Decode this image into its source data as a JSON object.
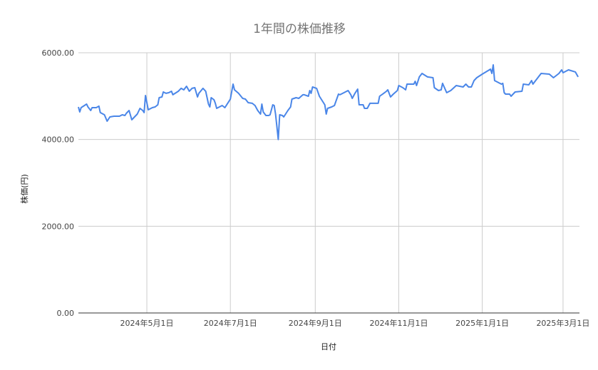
{
  "chart_data": {
    "type": "line",
    "title": "1年間の株価推移",
    "xlabel": "日付",
    "ylabel": "株価(円)",
    "xlim": [
      "2024-03-12",
      "2025-03-13"
    ],
    "ylim": [
      0,
      6000
    ],
    "grid": true,
    "legend": "none",
    "line_color": "#4a86e8",
    "x_ticks": [
      {
        "date": "2024-05-01",
        "label": "2024年5月1日"
      },
      {
        "date": "2024-07-01",
        "label": "2024年7月1日"
      },
      {
        "date": "2024-09-01",
        "label": "2024年9月1日"
      },
      {
        "date": "2024-11-01",
        "label": "2024年11月1日"
      },
      {
        "date": "2025-01-01",
        "label": "2025年1月1日"
      },
      {
        "date": "2025-03-01",
        "label": "2025年3月1日"
      }
    ],
    "y_ticks": [
      {
        "value": 0,
        "label": "0.00"
      },
      {
        "value": 2000,
        "label": "2000.00"
      },
      {
        "value": 4000,
        "label": "4000.00"
      },
      {
        "value": 6000,
        "label": "6000.00"
      }
    ],
    "series": [
      {
        "x": [
          "2024-03-12",
          "2024-03-13",
          "2024-03-14",
          "2024-03-18",
          "2024-03-19",
          "2024-03-21",
          "2024-03-22",
          "2024-03-25",
          "2024-03-27",
          "2024-03-28",
          "2024-03-31",
          "2024-04-02",
          "2024-04-04",
          "2024-04-07",
          "2024-04-10",
          "2024-04-11",
          "2024-04-13",
          "2024-04-15",
          "2024-04-16",
          "2024-04-18",
          "2024-04-20",
          "2024-04-24",
          "2024-04-26",
          "2024-04-28",
          "2024-04-29",
          "2024-04-30",
          "2024-05-02",
          "2024-05-05",
          "2024-05-07",
          "2024-05-09",
          "2024-05-10",
          "2024-05-12",
          "2024-05-13",
          "2024-05-15",
          "2024-05-17",
          "2024-05-19",
          "2024-05-20",
          "2024-05-24",
          "2024-05-26",
          "2024-05-28",
          "2024-05-30",
          "2024-06-01",
          "2024-06-03",
          "2024-06-05",
          "2024-06-07",
          "2024-06-08",
          "2024-06-11",
          "2024-06-13",
          "2024-06-15",
          "2024-06-16",
          "2024-06-17",
          "2024-06-19",
          "2024-06-20",
          "2024-06-21",
          "2024-06-23",
          "2024-06-25",
          "2024-06-27",
          "2024-06-29",
          "2024-07-01",
          "2024-07-03",
          "2024-07-04",
          "2024-07-07",
          "2024-07-10",
          "2024-07-12",
          "2024-07-14",
          "2024-07-17",
          "2024-07-19",
          "2024-07-21",
          "2024-07-23",
          "2024-07-24",
          "2024-07-25",
          "2024-07-27",
          "2024-07-29",
          "2024-07-30",
          "2024-08-01",
          "2024-08-02",
          "2024-08-03",
          "2024-08-05",
          "2024-08-06",
          "2024-08-08",
          "2024-08-09",
          "2024-08-12",
          "2024-08-14",
          "2024-08-15",
          "2024-08-18",
          "2024-08-20",
          "2024-08-23",
          "2024-08-24",
          "2024-08-27",
          "2024-08-28",
          "2024-08-29",
          "2024-08-30",
          "2024-09-02",
          "2024-09-04",
          "2024-09-06",
          "2024-09-08",
          "2024-09-09",
          "2024-09-10",
          "2024-09-13",
          "2024-09-15",
          "2024-09-18",
          "2024-09-19",
          "2024-09-22",
          "2024-09-25",
          "2024-09-27",
          "2024-09-28",
          "2024-09-30",
          "2024-10-02",
          "2024-10-03",
          "2024-10-06",
          "2024-10-07",
          "2024-10-09",
          "2024-10-11",
          "2024-10-14",
          "2024-10-17",
          "2024-10-18",
          "2024-10-21",
          "2024-10-23",
          "2024-10-24",
          "2024-10-26",
          "2024-10-28",
          "2024-10-31",
          "2024-11-01",
          "2024-11-04",
          "2024-11-06",
          "2024-11-07",
          "2024-11-12",
          "2024-11-13",
          "2024-11-14",
          "2024-11-16",
          "2024-11-18",
          "2024-11-22",
          "2024-11-26",
          "2024-11-27",
          "2024-11-30",
          "2024-12-02",
          "2024-12-03",
          "2024-12-06",
          "2024-12-09",
          "2024-12-13",
          "2024-12-18",
          "2024-12-20",
          "2024-12-22",
          "2024-12-24",
          "2024-12-26",
          "2024-12-28",
          "2025-01-01",
          "2025-01-07",
          "2025-01-08",
          "2025-01-09",
          "2025-01-10",
          "2025-01-15",
          "2025-01-16",
          "2025-01-17",
          "2025-01-18",
          "2025-01-21",
          "2025-01-22",
          "2025-01-25",
          "2025-01-30",
          "2025-01-31",
          "2025-02-04",
          "2025-02-06",
          "2025-02-07",
          "2025-02-09",
          "2025-02-13",
          "2025-02-19",
          "2025-02-22",
          "2025-02-26",
          "2025-02-28",
          "2025-03-01",
          "2025-03-05",
          "2025-03-10",
          "2025-03-12"
        ],
        "values": [
          4751,
          4636,
          4735,
          4817,
          4751,
          4669,
          4735,
          4735,
          4768,
          4620,
          4570,
          4422,
          4521,
          4537,
          4537,
          4537,
          4570,
          4554,
          4603,
          4669,
          4455,
          4587,
          4718,
          4669,
          4620,
          5014,
          4685,
          4735,
          4751,
          4800,
          4965,
          4981,
          5096,
          5064,
          5080,
          5113,
          5031,
          5113,
          5179,
          5146,
          5228,
          5113,
          5179,
          5195,
          4981,
          5064,
          5179,
          5113,
          4817,
          4751,
          4965,
          4916,
          4834,
          4718,
          4751,
          4784,
          4735,
          4834,
          4932,
          5277,
          5146,
          5064,
          4948,
          4932,
          4850,
          4834,
          4784,
          4669,
          4587,
          4817,
          4636,
          4554,
          4554,
          4570,
          4800,
          4784,
          4587,
          4000,
          4570,
          4554,
          4521,
          4669,
          4751,
          4932,
          4965,
          4948,
          5031,
          5031,
          4998,
          5129,
          5064,
          5211,
          5179,
          4998,
          4899,
          4800,
          4587,
          4718,
          4751,
          4784,
          5047,
          5031,
          5080,
          5129,
          5031,
          4948,
          5064,
          5162,
          4800,
          4800,
          4718,
          4718,
          4834,
          4834,
          4834,
          4998,
          5064,
          5113,
          5146,
          4981,
          5047,
          5129,
          5244,
          5195,
          5146,
          5277,
          5277,
          5343,
          5244,
          5442,
          5524,
          5442,
          5425,
          5195,
          5129,
          5146,
          5294,
          5080,
          5129,
          5244,
          5211,
          5277,
          5211,
          5211,
          5359,
          5425,
          5507,
          5622,
          5524,
          5721,
          5359,
          5277,
          5294,
          5080,
          5047,
          5047,
          4998,
          5096,
          5113,
          5277,
          5261,
          5359,
          5277,
          5359,
          5524,
          5507,
          5425,
          5524,
          5606,
          5540,
          5606,
          5557,
          5442
        ]
      }
    ]
  }
}
